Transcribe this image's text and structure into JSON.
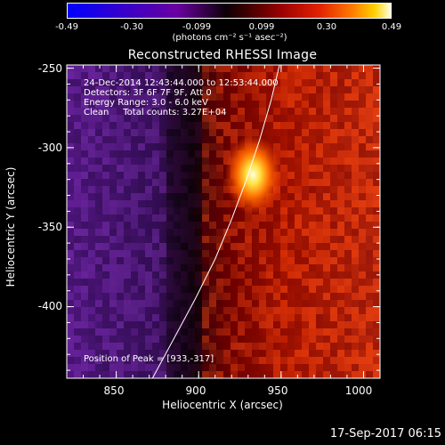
{
  "colorbar": {
    "ticks": [
      "-0.49",
      "-0.30",
      "-0.099",
      "0.099",
      "0.30",
      "0.49"
    ],
    "unit_label": "(photons cm⁻² s⁻¹ asec⁻²)"
  },
  "chart_data": {
    "type": "heatmap",
    "title": "Reconstructed RHESSI Image",
    "xlabel": "Heliocentric X (arcsec)",
    "ylabel": "Heliocentric Y (arcsec)",
    "xlim": [
      820,
      1010
    ],
    "ylim": [
      -445,
      -248
    ],
    "xticks": [
      "850",
      "900",
      "950",
      "1000"
    ],
    "yticks": [
      "-250",
      "-300",
      "-350",
      "-400"
    ],
    "color_range": [
      -0.49,
      0.49
    ],
    "annotations": [
      "24-Dec-2014 12:43:44.000 to 12:53:44.000",
      "Detectors: 3F 6F 7F 9F, Att 0",
      "Energy Range: 3.0 - 6.0 keV",
      "Clean     Total counts: 3.27E+04"
    ],
    "peak_label": "Position of Peak = [933,-317]",
    "peak": [
      933,
      -317
    ],
    "limb_curve_x": [
      872,
      885,
      898,
      910,
      920,
      929,
      937,
      944,
      949
    ],
    "limb_curve_y": [
      -445,
      -420,
      -395,
      -370,
      -345,
      -320,
      -295,
      -270,
      -248
    ]
  },
  "footer": {
    "timestamp": "17-Sep-2017 06:15"
  }
}
